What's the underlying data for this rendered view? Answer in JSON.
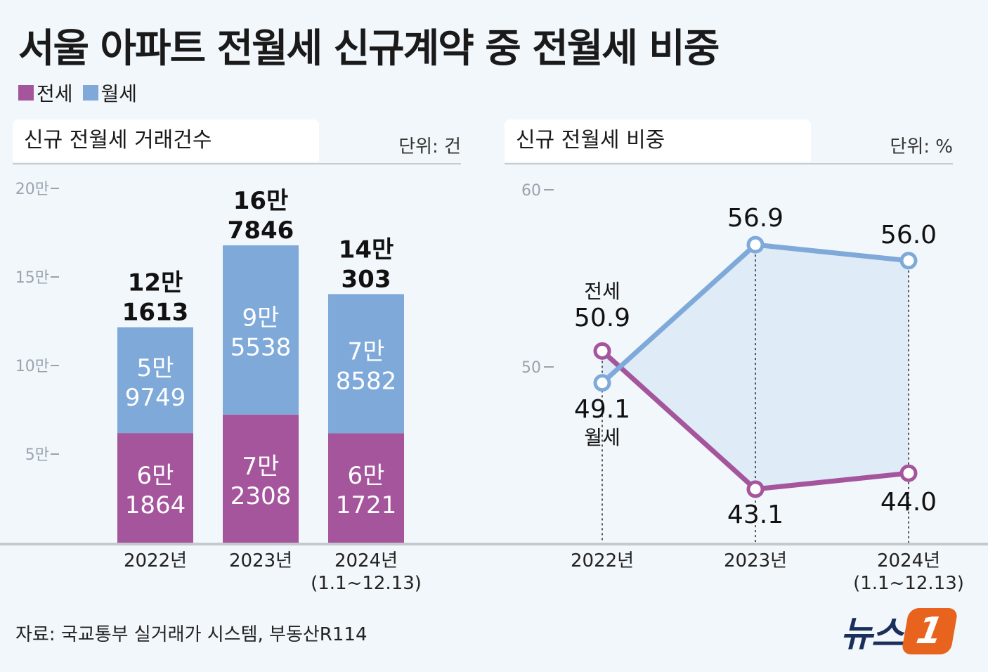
{
  "title": "서울 아파트 전월세 신규계약 중 전월세 비중",
  "legend": [
    {
      "label": "전세",
      "color": "#a4559c"
    },
    {
      "label": "월세",
      "color": "#7ea9d9"
    }
  ],
  "colors": {
    "jeonse": "#a4559c",
    "wolse": "#7ea9d9",
    "area_fill": "#dde9f5"
  },
  "source": "자료: 국교통부 실거래가 시스템, 부동산R114",
  "logo": {
    "text": "뉴스",
    "badge": "1"
  },
  "chart_data": [
    {
      "type": "bar",
      "stacked": true,
      "panel_title": "신규 전월세 거래건수",
      "unit": "단위: 건",
      "categories": [
        "2022년",
        "2023년",
        "2024년"
      ],
      "category_notes": [
        "",
        "",
        "(1.1~12.13)"
      ],
      "yticks": [
        {
          "value": 50000,
          "label": "5만"
        },
        {
          "value": 100000,
          "label": "10만"
        },
        {
          "value": 150000,
          "label": "15만"
        },
        {
          "value": 200000,
          "label": "20만"
        }
      ],
      "ylim": [
        0,
        200000
      ],
      "series": [
        {
          "name": "전세",
          "values": [
            61864,
            72308,
            61721
          ],
          "labels": [
            [
              "6만",
              "1864"
            ],
            [
              "7만",
              "2308"
            ],
            [
              "6만",
              "1721"
            ]
          ]
        },
        {
          "name": "월세",
          "values": [
            59749,
            95538,
            78582
          ],
          "labels": [
            [
              "5만",
              "9749"
            ],
            [
              "9만",
              "5538"
            ],
            [
              "7만",
              "8582"
            ]
          ]
        }
      ],
      "totals": [
        121613,
        167846,
        140303
      ],
      "total_labels": [
        [
          "12만",
          "1613"
        ],
        [
          "16만",
          "7846"
        ],
        [
          "14만",
          "303"
        ]
      ]
    },
    {
      "type": "line",
      "panel_title": "신규 전월세 비중",
      "unit": "단위: %",
      "categories": [
        "2022년",
        "2023년",
        "2024년"
      ],
      "category_notes": [
        "",
        "",
        "(1.1~12.13)"
      ],
      "yticks": [
        {
          "value": 50,
          "label": "50"
        },
        {
          "value": 60,
          "label": "60"
        }
      ],
      "series": [
        {
          "name": "전세",
          "values": [
            50.9,
            43.1,
            44.0
          ],
          "labels": [
            "50.9",
            "43.1",
            "44.0"
          ]
        },
        {
          "name": "월세",
          "values": [
            49.1,
            56.9,
            56.0
          ],
          "labels": [
            "49.1",
            "56.9",
            "56.0"
          ]
        }
      ],
      "annotations": {
        "jeonse_name": "전세",
        "wolse_name": "월세"
      }
    }
  ]
}
